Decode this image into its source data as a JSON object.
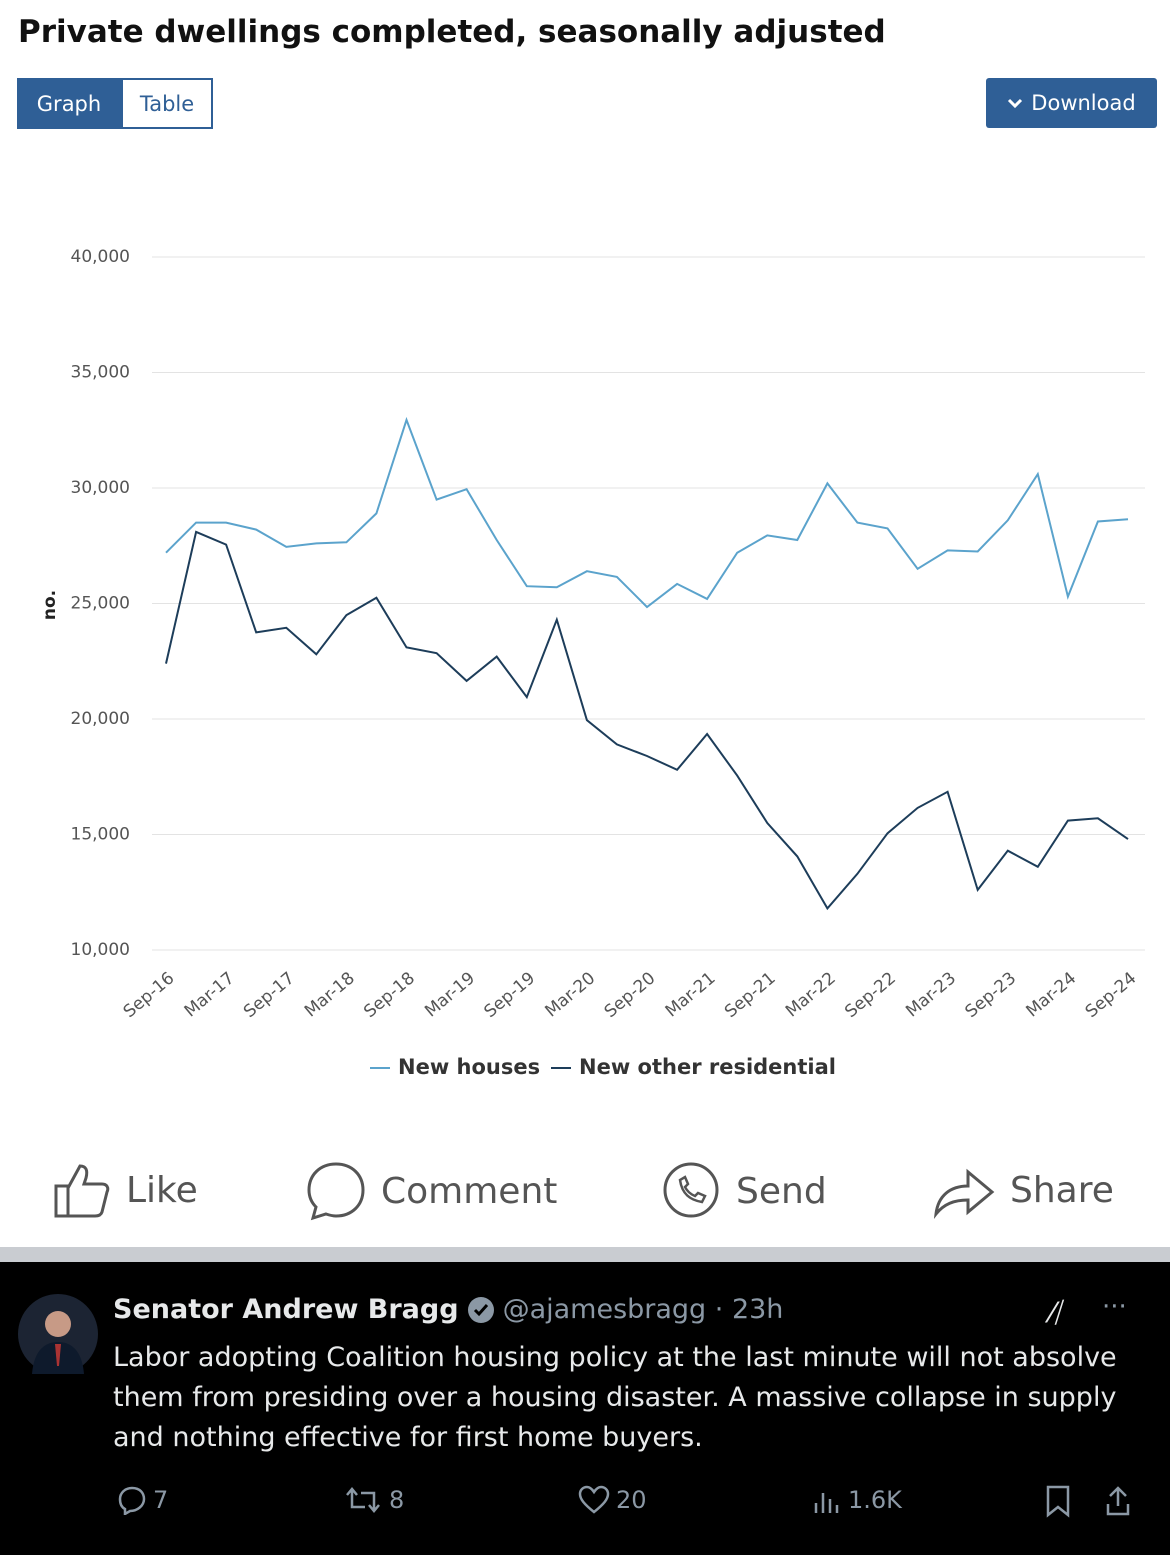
{
  "chart_data": {
    "type": "line",
    "title": "Private dwellings completed, seasonally adjusted",
    "y_label": "no.",
    "categories": [
      "Sep-16",
      null,
      "Mar-17",
      null,
      "Sep-17",
      null,
      "Mar-18",
      null,
      "Sep-18",
      null,
      "Mar-19",
      null,
      "Sep-19",
      null,
      "Mar-20",
      null,
      "Sep-20",
      null,
      "Mar-21",
      null,
      "Sep-21",
      null,
      "Mar-22",
      null,
      "Sep-22",
      null,
      "Mar-23",
      null,
      "Sep-23",
      null,
      "Mar-24",
      null,
      "Sep-24"
    ],
    "series": [
      {
        "name": "New houses",
        "color": "#5ba3cc",
        "values": [
          27200,
          28500,
          28500,
          28200,
          27450,
          27600,
          27650,
          28900,
          32950,
          29500,
          29950,
          27750,
          25750,
          25700,
          26400,
          26150,
          24850,
          25850,
          25200,
          27200,
          27950,
          27750,
          30200,
          28500,
          28250,
          26500,
          27300,
          27250,
          28600,
          30600,
          25300,
          28550,
          28650
        ]
      },
      {
        "name": "New other residential",
        "color": "#1d3d5a",
        "values": [
          22400,
          28100,
          27550,
          23750,
          23950,
          22800,
          24500,
          25250,
          23100,
          22850,
          21650,
          22700,
          20950,
          24300,
          19950,
          18900,
          18400,
          17800,
          19350,
          17550,
          15500,
          14050,
          11800,
          13300,
          15050,
          16150,
          16850,
          12600,
          14300,
          13600,
          15600,
          15700,
          14800
        ]
      }
    ],
    "ylim": [
      10000,
      40000
    ],
    "yticks": [
      {
        "value": 10000,
        "label": "10,000"
      },
      {
        "value": 15000,
        "label": "15,000"
      },
      {
        "value": 20000,
        "label": "20,000"
      },
      {
        "value": 25000,
        "label": "25,000"
      },
      {
        "value": 30000,
        "label": "30,000"
      },
      {
        "value": 35000,
        "label": "35,000"
      },
      {
        "value": 40000,
        "label": "40,000"
      }
    ],
    "grid": true
  },
  "tabs": [
    "Graph",
    "Table"
  ],
  "download": "Download",
  "actions": [
    "Like",
    "Comment",
    "Send",
    "Share"
  ],
  "tweet": {
    "name": "Senator Andrew Bragg",
    "handle": "@ajamesbragg · 23h",
    "text": "Labor adopting Coalition housing policy at the last minute will not absolve them from presiding over a housing disaster. A massive collapse in supply and nothing effective for first home buyers.",
    "replies": "7",
    "reposts": "8",
    "likes": "20",
    "views": "1.6K"
  }
}
